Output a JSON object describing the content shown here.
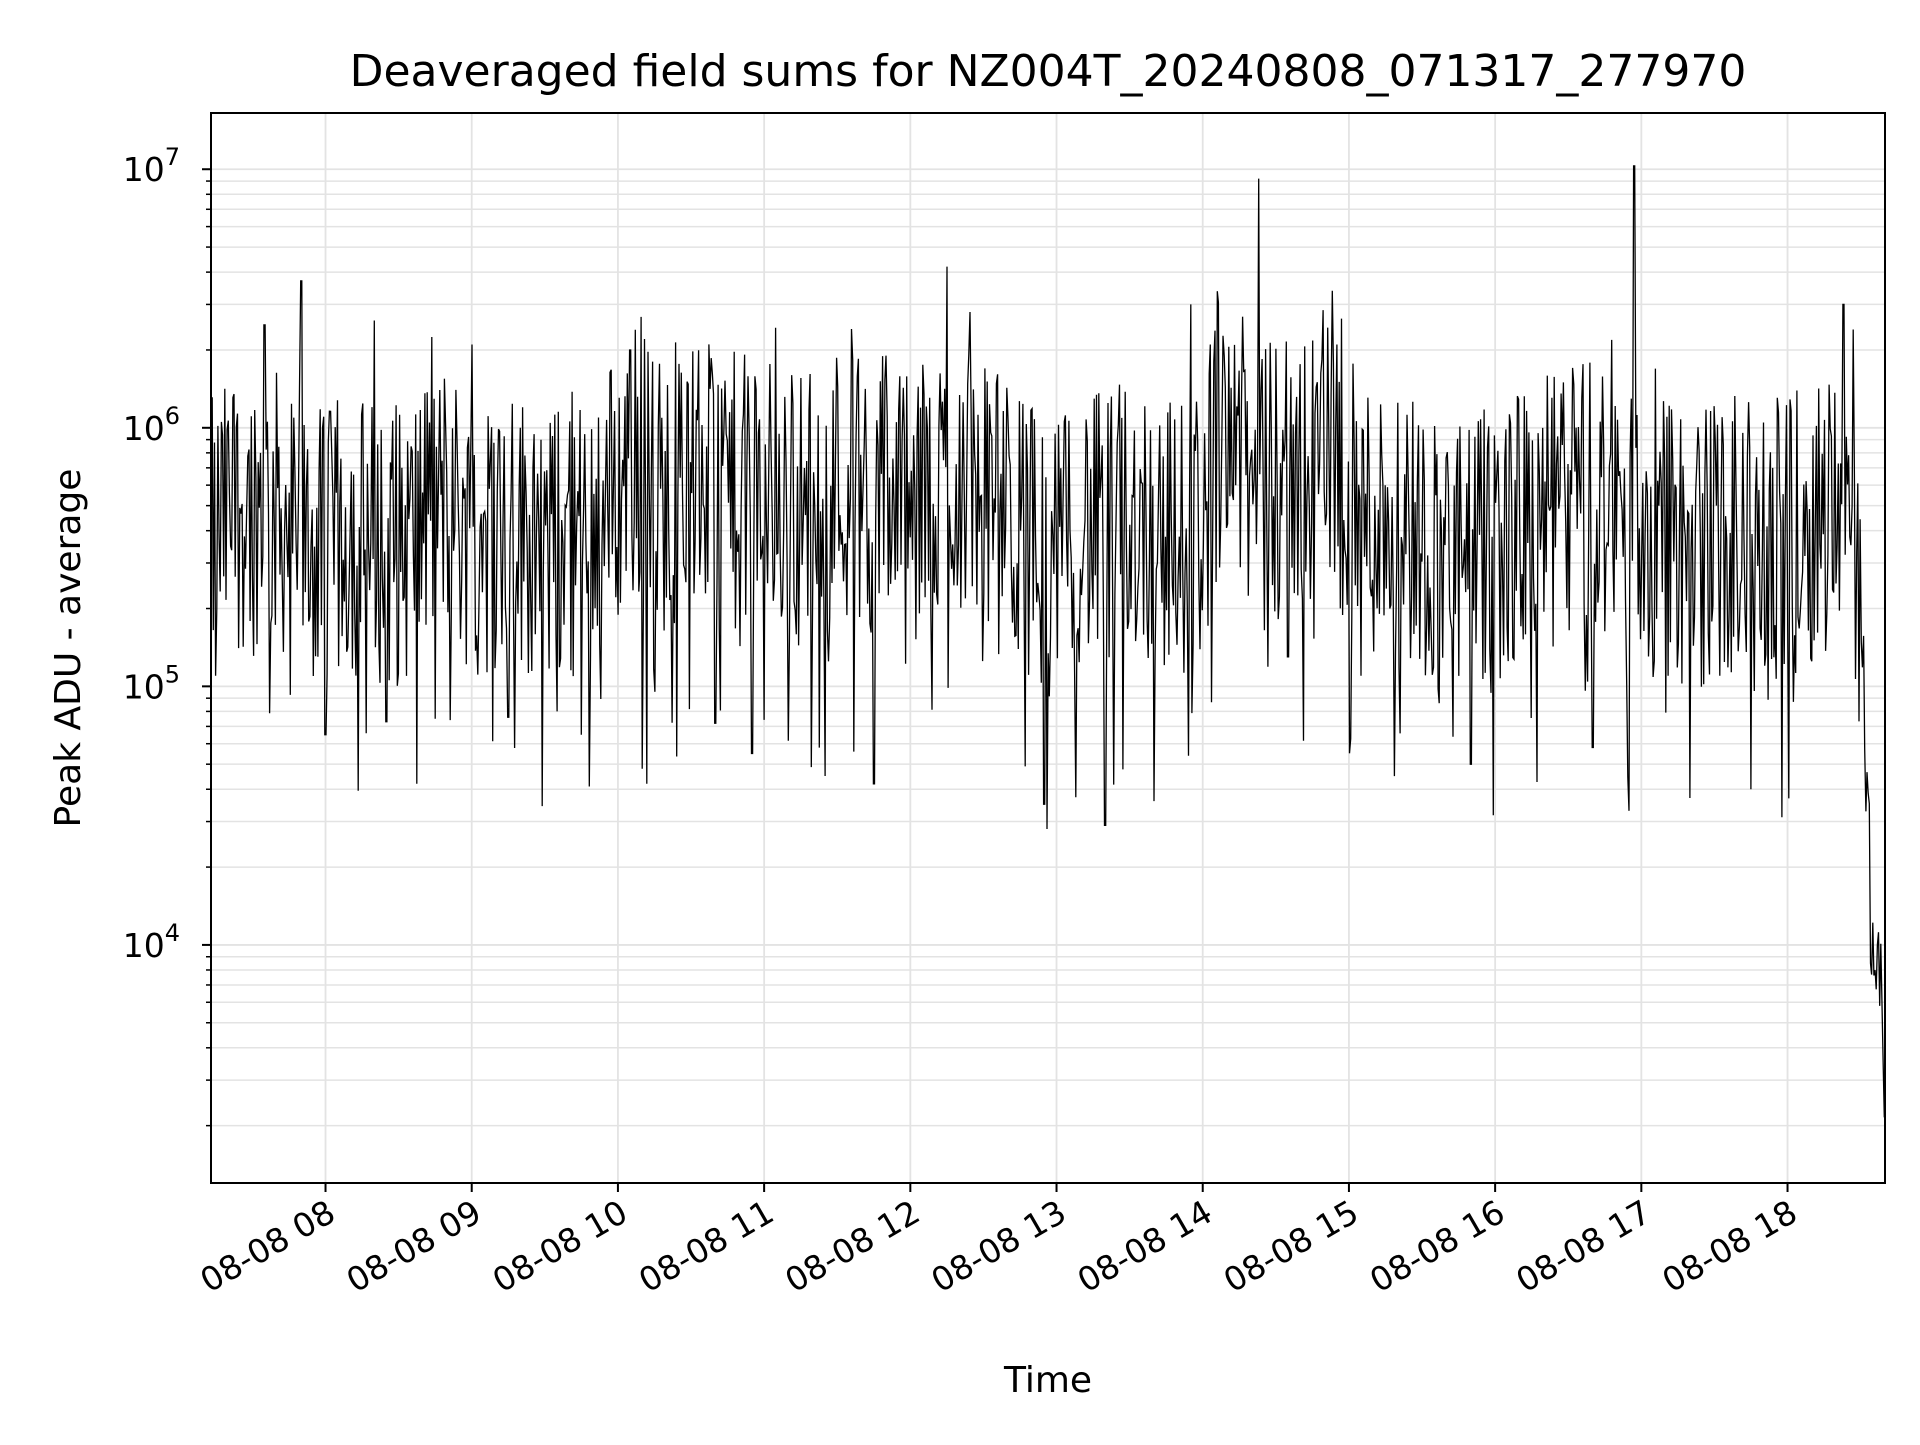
{
  "chart_data": {
    "type": "line",
    "title": "Deaveraged field sums for NZ004T_20240808_071317_277970",
    "xlabel": "Time",
    "ylabel": "Peak ADU - average",
    "y_scale": "log",
    "xlim": [
      "2024-08-08 07:13",
      "2024-08-08 18:40"
    ],
    "ylim": [
      1200,
      16500000
    ],
    "grid": true,
    "line_color": "#000000",
    "grid_color": "#e3e3e3",
    "x_ticks": [
      {
        "value": "2024-08-08 08:00",
        "label": "08-08 08"
      },
      {
        "value": "2024-08-08 09:00",
        "label": "08-08 09"
      },
      {
        "value": "2024-08-08 10:00",
        "label": "08-08 10"
      },
      {
        "value": "2024-08-08 11:00",
        "label": "08-08 11"
      },
      {
        "value": "2024-08-08 12:00",
        "label": "08-08 12"
      },
      {
        "value": "2024-08-08 13:00",
        "label": "08-08 13"
      },
      {
        "value": "2024-08-08 14:00",
        "label": "08-08 14"
      },
      {
        "value": "2024-08-08 15:00",
        "label": "08-08 15"
      },
      {
        "value": "2024-08-08 16:00",
        "label": "08-08 16"
      },
      {
        "value": "2024-08-08 17:00",
        "label": "08-08 17"
      },
      {
        "value": "2024-08-08 18:00",
        "label": "08-08 18"
      }
    ],
    "y_ticks": [
      {
        "value": 10000,
        "base": "10",
        "exp": "4"
      },
      {
        "value": 100000,
        "base": "10",
        "exp": "5"
      },
      {
        "value": 1000000,
        "base": "10",
        "exp": "6"
      },
      {
        "value": 10000000,
        "base": "10",
        "exp": "7"
      }
    ],
    "series": [
      {
        "x": [
          "2024-08-08 07:13",
          "2024-08-08 07:20",
          "2024-08-08 07:30",
          "2024-08-08 07:40",
          "2024-08-08 07:50",
          "2024-08-08 08:00",
          "2024-08-08 08:10",
          "2024-08-08 08:20",
          "2024-08-08 08:30",
          "2024-08-08 08:40",
          "2024-08-08 08:50",
          "2024-08-08 09:00",
          "2024-08-08 09:10",
          "2024-08-08 09:20",
          "2024-08-08 09:30",
          "2024-08-08 09:40",
          "2024-08-08 09:50",
          "2024-08-08 10:00",
          "2024-08-08 10:10",
          "2024-08-08 10:20",
          "2024-08-08 10:30",
          "2024-08-08 10:40",
          "2024-08-08 10:50",
          "2024-08-08 11:00",
          "2024-08-08 11:10",
          "2024-08-08 11:20",
          "2024-08-08 11:30",
          "2024-08-08 11:40",
          "2024-08-08 11:50",
          "2024-08-08 12:00",
          "2024-08-08 12:10",
          "2024-08-08 12:20",
          "2024-08-08 12:30",
          "2024-08-08 12:40",
          "2024-08-08 12:50",
          "2024-08-08 13:00",
          "2024-08-08 13:10",
          "2024-08-08 13:20",
          "2024-08-08 13:30",
          "2024-08-08 13:40",
          "2024-08-08 13:50",
          "2024-08-08 14:00",
          "2024-08-08 14:10",
          "2024-08-08 14:20",
          "2024-08-08 14:30",
          "2024-08-08 14:40",
          "2024-08-08 14:50",
          "2024-08-08 15:00",
          "2024-08-08 15:10",
          "2024-08-08 15:20",
          "2024-08-08 15:30",
          "2024-08-08 15:40",
          "2024-08-08 15:50",
          "2024-08-08 16:00",
          "2024-08-08 16:10",
          "2024-08-08 16:20",
          "2024-08-08 16:30",
          "2024-08-08 16:40",
          "2024-08-08 16:50",
          "2024-08-08 17:00",
          "2024-08-08 17:10",
          "2024-08-08 17:20",
          "2024-08-08 17:30",
          "2024-08-08 17:40",
          "2024-08-08 17:50",
          "2024-08-08 18:00",
          "2024-08-08 18:10",
          "2024-08-08 18:20",
          "2024-08-08 18:26",
          "2024-08-08 18:30",
          "2024-08-08 18:34",
          "2024-08-08 18:38",
          "2024-08-08 18:40"
        ],
        "y": [
          500000,
          600000,
          700000,
          650000,
          500000,
          450000,
          550000,
          500000,
          450000,
          600000,
          750000,
          500000,
          500000,
          550000,
          450000,
          500000,
          600000,
          800000,
          1000000,
          700000,
          900000,
          800000,
          750000,
          800000,
          650000,
          700000,
          850000,
          800000,
          850000,
          500000,
          800000,
          900000,
          700000,
          600000,
          500000,
          400000,
          600000,
          500000,
          650000,
          550000,
          500000,
          600000,
          2000000,
          700000,
          800000,
          900000,
          1200000,
          700000,
          600000,
          650000,
          500000,
          450000,
          400000,
          500000,
          550000,
          600000,
          700000,
          800000,
          600000,
          550000,
          500000,
          450000,
          500000,
          550000,
          400000,
          500000,
          600000,
          700000,
          1000000,
          200000,
          20000,
          8000,
          2000
        ]
      }
    ],
    "min_points": [
      {
        "x": "2024-08-08 07:15",
        "y": 110000
      },
      {
        "x": "2024-08-08 08:00",
        "y": 65000
      },
      {
        "x": "2024-08-08 08:25",
        "y": 73000
      },
      {
        "x": "2024-08-08 08:45",
        "y": 75000
      },
      {
        "x": "2024-08-08 09:15",
        "y": 76000
      },
      {
        "x": "2024-08-08 09:35",
        "y": 80000
      },
      {
        "x": "2024-08-08 09:45",
        "y": 65000
      },
      {
        "x": "2024-08-08 10:10",
        "y": 48000
      },
      {
        "x": "2024-08-08 10:12",
        "y": 42000
      },
      {
        "x": "2024-08-08 10:40",
        "y": 72000
      },
      {
        "x": "2024-08-08 10:55",
        "y": 55000
      },
      {
        "x": "2024-08-08 11:25",
        "y": 45000
      },
      {
        "x": "2024-08-08 11:45",
        "y": 42000
      },
      {
        "x": "2024-08-08 12:10",
        "y": 230000
      },
      {
        "x": "2024-08-08 12:55",
        "y": 35000
      },
      {
        "x": "2024-08-08 13:20",
        "y": 29000
      },
      {
        "x": "2024-08-08 13:40",
        "y": 36000
      },
      {
        "x": "2024-08-08 13:55",
        "y": 45000
      },
      {
        "x": "2024-08-08 14:35",
        "y": 130000
      },
      {
        "x": "2024-08-08 15:05",
        "y": 110000
      },
      {
        "x": "2024-08-08 15:50",
        "y": 50000
      },
      {
        "x": "2024-08-08 16:40",
        "y": 58000
      },
      {
        "x": "2024-08-08 16:55",
        "y": 33000
      },
      {
        "x": "2024-08-08 17:20",
        "y": 37000
      },
      {
        "x": "2024-08-08 17:45",
        "y": 40000
      },
      {
        "x": "2024-08-08 18:20",
        "y": 250000
      }
    ],
    "max_points": [
      {
        "x": "2024-08-08 07:35",
        "y": 2500000
      },
      {
        "x": "2024-08-08 07:50",
        "y": 3700000
      },
      {
        "x": "2024-08-08 08:20",
        "y": 2600000
      },
      {
        "x": "2024-08-08 09:00",
        "y": 2100000
      },
      {
        "x": "2024-08-08 10:05",
        "y": 2000000
      },
      {
        "x": "2024-08-08 11:50",
        "y": 1900000
      },
      {
        "x": "2024-08-08 12:15",
        "y": 4200000
      },
      {
        "x": "2024-08-08 13:55",
        "y": 3000000
      },
      {
        "x": "2024-08-08 14:23",
        "y": 9200000
      },
      {
        "x": "2024-08-08 14:55",
        "y": 2100000
      },
      {
        "x": "2024-08-08 16:57",
        "y": 10300000
      },
      {
        "x": "2024-08-08 18:23",
        "y": 3000000
      },
      {
        "x": "2024-08-08 18:27",
        "y": 2400000
      }
    ]
  }
}
